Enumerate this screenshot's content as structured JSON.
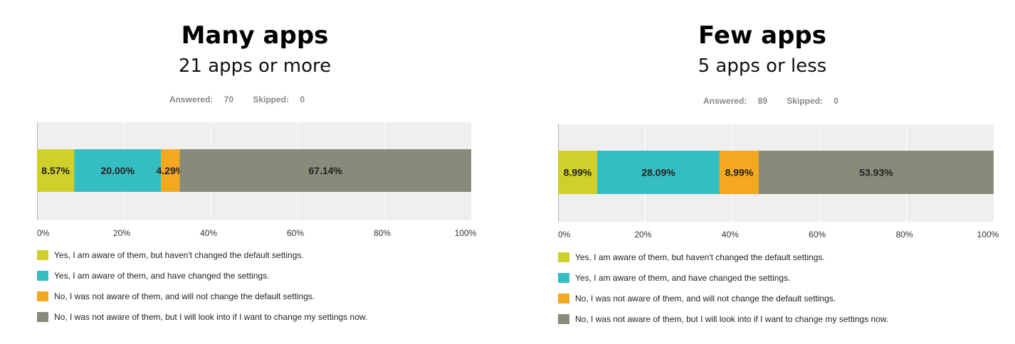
{
  "colors": {
    "seg0": "#cfd12a",
    "seg1": "#35bec2",
    "seg2": "#f4a81f",
    "seg3": "#898a79",
    "plot_bg": "#efefef",
    "grid": "#ffffff",
    "axis": "#b5b5b5"
  },
  "legend": [
    "Yes, I am aware of them, but haven't changed the default settings.",
    "Yes, I am aware of them, and have changed the settings.",
    "No, I was not aware of them, and will not change the default settings.",
    "No, I was not aware of them, but I will look into if I want to change my settings now."
  ],
  "meta": {
    "answered_label": "Answered:",
    "skipped_label": "Skipped:"
  },
  "chart_data": [
    {
      "type": "bar",
      "orientation": "horizontal-stacked",
      "title": "Many apps",
      "subtitle": "21 apps or more",
      "answered": "70",
      "skipped": "0",
      "xlim": [
        0,
        100
      ],
      "x_ticks": [
        "0%",
        "20%",
        "40%",
        "60%",
        "80%",
        "100%"
      ],
      "grid": true,
      "legend_position": "bottom",
      "series": [
        {
          "value": 8.57,
          "label": "8.57%"
        },
        {
          "value": 20.0,
          "label": "20.00%"
        },
        {
          "value": 4.29,
          "label": "4.29%"
        },
        {
          "value": 67.14,
          "label": "67.14%"
        }
      ]
    },
    {
      "type": "bar",
      "orientation": "horizontal-stacked",
      "title": "Few apps",
      "subtitle": "5 apps or less",
      "answered": "89",
      "skipped": "0",
      "xlim": [
        0,
        100
      ],
      "x_ticks": [
        "0%",
        "20%",
        "40%",
        "60%",
        "80%",
        "100%"
      ],
      "grid": true,
      "legend_position": "bottom",
      "series": [
        {
          "value": 8.99,
          "label": "8.99%"
        },
        {
          "value": 28.09,
          "label": "28.09%"
        },
        {
          "value": 8.99,
          "label": "8.99%"
        },
        {
          "value": 53.93,
          "label": "53.93%"
        }
      ]
    }
  ]
}
